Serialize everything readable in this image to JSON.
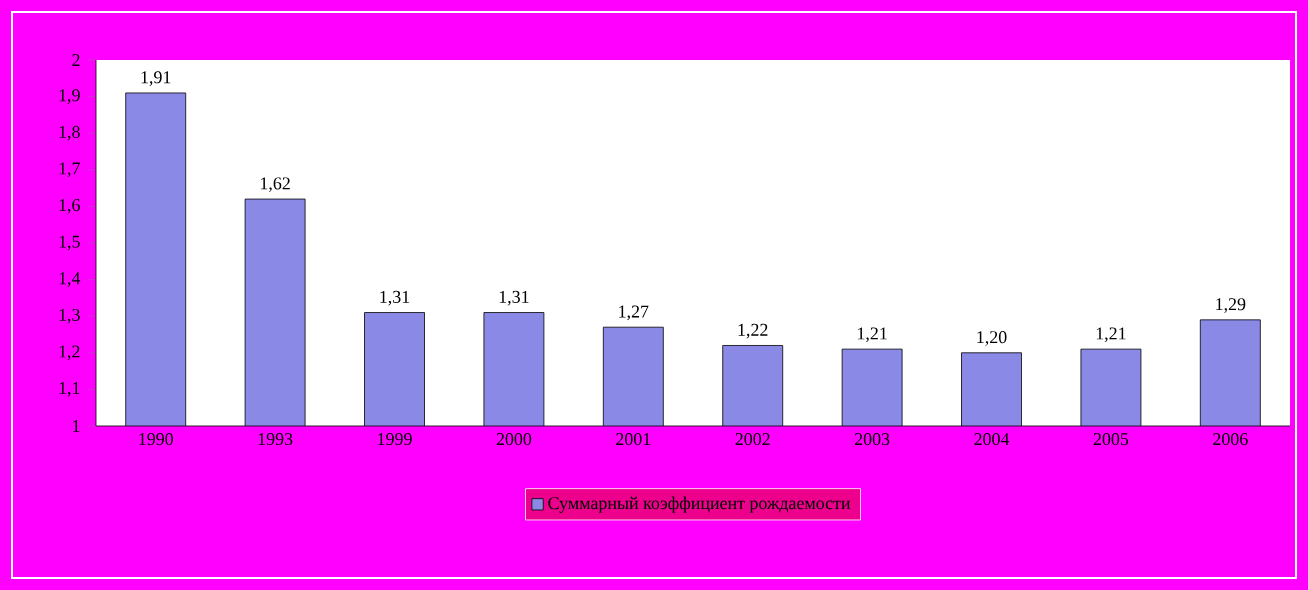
{
  "chart_data": {
    "type": "bar",
    "categories": [
      "1990",
      "1993",
      "1999",
      "2000",
      "2001",
      "2002",
      "2003",
      "2004",
      "2005",
      "2006"
    ],
    "series": [
      {
        "name": "Суммарный коэффициент рождаемости",
        "color": "#8a8ae6",
        "values": [
          1.91,
          1.62,
          1.31,
          1.31,
          1.27,
          1.22,
          1.21,
          1.2,
          1.21,
          1.29
        ],
        "value_labels": [
          "1,91",
          "1,62",
          "1,31",
          "1,31",
          "1,27",
          "1,22",
          "1,21",
          "1,20",
          "1,21",
          "1,29"
        ]
      }
    ],
    "ylim": [
      1,
      2
    ],
    "yticks": [
      1,
      {
        "value": 1.1,
        "label": "1,1"
      },
      {
        "value": 1.2,
        "label": "1,2"
      },
      {
        "value": 1.3,
        "label": "1,3"
      },
      {
        "value": 1.4,
        "label": "1,4"
      },
      {
        "value": 1.5,
        "label": "1,5"
      },
      {
        "value": 1.6,
        "label": "1,6"
      },
      {
        "value": 1.7,
        "label": "1,7"
      },
      {
        "value": 1.8,
        "label": "1,8"
      },
      {
        "value": 1.9,
        "label": "1,9"
      },
      2
    ],
    "legend": "bottom"
  }
}
